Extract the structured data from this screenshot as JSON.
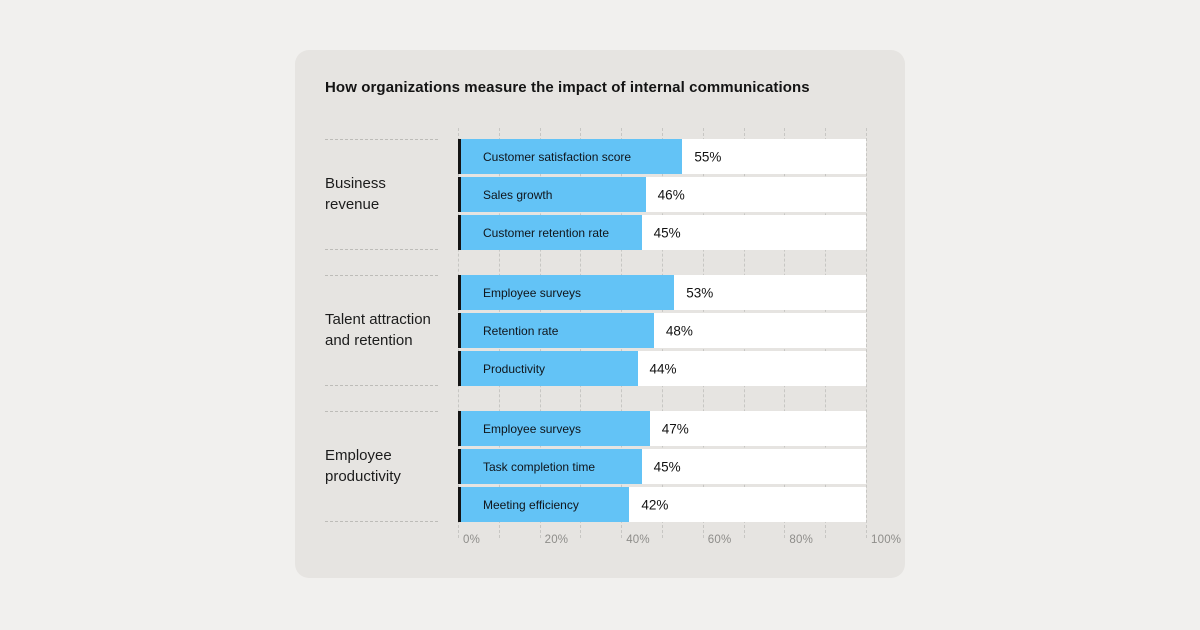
{
  "chart_data": {
    "type": "bar",
    "orientation": "horizontal",
    "title": "How organizations measure the impact of internal communications",
    "xlabel": "",
    "ylabel": "",
    "unit": "%",
    "xlim": [
      0,
      100
    ],
    "grid": true,
    "gridline_step_pct": 10,
    "x_ticks": [
      {
        "value": 0,
        "label": "0%"
      },
      {
        "value": 20,
        "label": "20%"
      },
      {
        "value": 40,
        "label": "40%"
      },
      {
        "value": 60,
        "label": "60%"
      },
      {
        "value": 80,
        "label": "80%"
      },
      {
        "value": 100,
        "label": "100%"
      }
    ],
    "groups": [
      {
        "label": "Business revenue",
        "bars": [
          {
            "label": "Customer satisfaction score",
            "value": 55,
            "value_label": "55%"
          },
          {
            "label": "Sales growth",
            "value": 46,
            "value_label": "46%"
          },
          {
            "label": "Customer retention rate",
            "value": 45,
            "value_label": "45%"
          }
        ]
      },
      {
        "label": "Talent attraction and retention",
        "bars": [
          {
            "label": "Employee surveys",
            "value": 53,
            "value_label": "53%"
          },
          {
            "label": "Retention rate",
            "value": 48,
            "value_label": "48%"
          },
          {
            "label": "Productivity",
            "value": 44,
            "value_label": "44%"
          }
        ]
      },
      {
        "label": "Employee productivity",
        "bars": [
          {
            "label": "Employee surveys",
            "value": 47,
            "value_label": "47%"
          },
          {
            "label": "Task completion time",
            "value": 45,
            "value_label": "45%"
          },
          {
            "label": "Meeting efficiency",
            "value": 42,
            "value_label": "42%"
          }
        ]
      }
    ],
    "colors": {
      "bar": "#63C3F6",
      "bar_edge": "#141414",
      "track": "#FFFFFF",
      "card_background": "#E6E4E1",
      "page_background": "#F1F0EE",
      "gridline": "#C7C6C3",
      "axis_label": "#8E8D8A",
      "text": "#141414"
    },
    "legend": null
  }
}
